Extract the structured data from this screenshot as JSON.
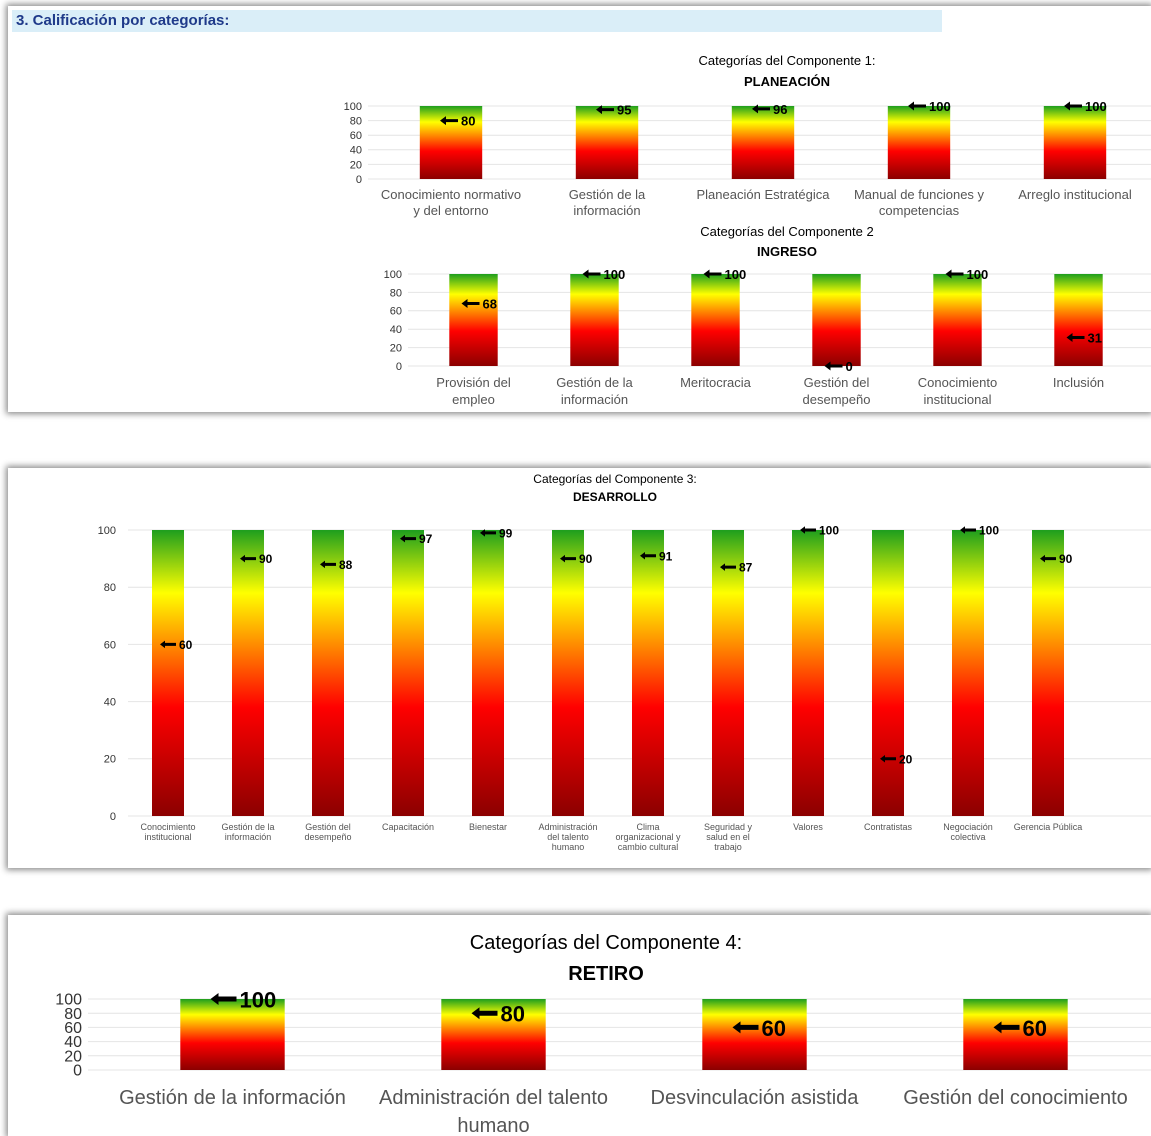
{
  "section_header": "3. Calificación por categorías:",
  "colors": {
    "bar_top": "#1e9e1e",
    "bar_yellow": "#ffff00",
    "bar_red": "#ff0000",
    "bar_bottom": "#8b0000",
    "marker": "#000000",
    "header_bg": "#daeef8",
    "header_text": "#1f3a8a"
  },
  "chart_data": [
    {
      "type": "bar",
      "title": "Categorías del Componente 1:",
      "subtitle": "PLANEACIÓN",
      "categories": [
        [
          "Conocimiento normativo",
          "y del entorno"
        ],
        [
          "Gestión de la",
          "información"
        ],
        [
          "Planeación Estratégica"
        ],
        [
          "Manual de funciones y",
          "competencias"
        ],
        [
          "Arreglo institucional"
        ]
      ],
      "values": [
        80,
        95,
        96,
        100,
        100
      ],
      "yticks": [
        0,
        20,
        40,
        60,
        80,
        100
      ],
      "ylim": [
        0,
        100
      ]
    },
    {
      "type": "bar",
      "title": "Categorías del Componente 2",
      "subtitle": "INGRESO",
      "categories": [
        [
          "Provisión del",
          "empleo"
        ],
        [
          "Gestión de la",
          "información"
        ],
        [
          "Meritocracia"
        ],
        [
          "Gestión del",
          "desempeño"
        ],
        [
          "Conocimiento",
          "institucional"
        ],
        [
          "Inclusión"
        ]
      ],
      "values": [
        68,
        100,
        100,
        0,
        100,
        31
      ],
      "yticks": [
        0,
        20,
        40,
        60,
        80,
        100
      ],
      "ylim": [
        0,
        100
      ]
    },
    {
      "type": "bar",
      "title": "Categorías del Componente 3:",
      "subtitle": "DESARROLLO",
      "categories": [
        [
          "Conocimiento",
          "institucional"
        ],
        [
          "Gestión de la",
          "información"
        ],
        [
          "Gestión del",
          "desempeño"
        ],
        [
          "Capacitación"
        ],
        [
          "Bienestar"
        ],
        [
          "Administración",
          "del talento",
          "humano"
        ],
        [
          "Clima",
          "organizacional y",
          "cambio cultural"
        ],
        [
          "Seguridad y",
          "salud en el",
          "trabajo"
        ],
        [
          "Valores"
        ],
        [
          "Contratistas"
        ],
        [
          "Negociación",
          "colectiva"
        ],
        [
          "Gerencia Pública"
        ]
      ],
      "values": [
        60,
        90,
        88,
        97,
        99,
        90,
        91,
        87,
        100,
        20,
        100,
        90
      ],
      "yticks": [
        0,
        20,
        40,
        60,
        80,
        100
      ],
      "ylim": [
        0,
        100
      ]
    },
    {
      "type": "bar",
      "title": "Categorías del Componente 4:",
      "subtitle": "RETIRO",
      "categories": [
        [
          "Gestión de la información"
        ],
        [
          "Administración del talento",
          "humano"
        ],
        [
          "Desvinculación asistida"
        ],
        [
          "Gestión del conocimiento"
        ]
      ],
      "values": [
        100,
        80,
        60,
        60
      ],
      "yticks": [
        0,
        20,
        40,
        60,
        80,
        100
      ],
      "ylim": [
        0,
        100
      ]
    }
  ]
}
